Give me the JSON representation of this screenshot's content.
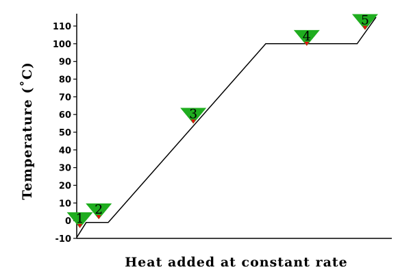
{
  "chart_data": {
    "type": "line",
    "title": "",
    "xlabel": "Heat added at constant rate",
    "ylabel": "Temperature (˚C)",
    "ylim": [
      -10,
      115
    ],
    "yticks": [
      -10,
      0,
      10,
      20,
      30,
      40,
      50,
      60,
      70,
      80,
      90,
      100,
      110
    ],
    "xlim": [
      0,
      100
    ],
    "grid": false,
    "series": [
      {
        "x": [
          0,
          3,
          10,
          60,
          89,
          95
        ],
        "y": [
          -9.5,
          -1,
          -1,
          100,
          100,
          115
        ]
      }
    ],
    "markers": [
      {
        "label": "1",
        "x": 1,
        "y": -3
      },
      {
        "label": "2",
        "x": 7,
        "y": 2
      },
      {
        "label": "3",
        "x": 37,
        "y": 56
      },
      {
        "label": "4",
        "x": 73,
        "y": 100
      },
      {
        "label": "5",
        "x": 91.5,
        "y": 109
      }
    ],
    "colors": {
      "line": "#000000",
      "marker_fill": "#1fad1f",
      "marker_tip": "#e01010",
      "axis": "#000000"
    }
  }
}
